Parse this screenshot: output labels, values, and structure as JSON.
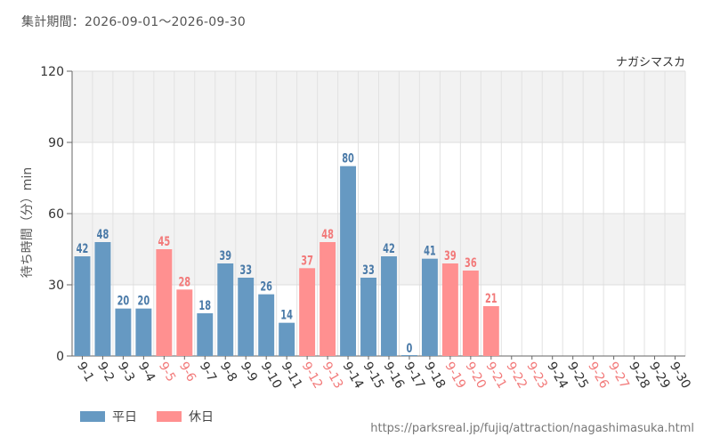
{
  "header": {
    "period": "集計期間：2026-09-01〜2026-09-30"
  },
  "footer": {
    "source_url": "https://parksreal.jp/fujiq/attraction/nagashimasuka.html"
  },
  "colors": {
    "weekday": "#6699c2",
    "holiday": "#ff9090",
    "weekday_label": "#4a7aa8",
    "holiday_label": "#f27a7a"
  },
  "chart_data": {
    "type": "bar",
    "title": "ナガシマスカ",
    "ylabel": "待ち時間（分）min",
    "xlabel": "",
    "ylim": [
      0,
      120
    ],
    "yticks": [
      0,
      30,
      60,
      90,
      120
    ],
    "grid": true,
    "legend_position": "bottom-left",
    "categories": [
      "9-1",
      "9-2",
      "9-3",
      "9-4",
      "9-5",
      "9-6",
      "9-7",
      "9-8",
      "9-9",
      "9-10",
      "9-11",
      "9-12",
      "9-13",
      "9-14",
      "9-15",
      "9-16",
      "9-17",
      "9-18",
      "9-19",
      "9-20",
      "9-21",
      "9-22",
      "9-23",
      "9-24",
      "9-25",
      "9-26",
      "9-27",
      "9-28",
      "9-29",
      "9-30"
    ],
    "values": [
      42,
      48,
      20,
      20,
      45,
      28,
      18,
      39,
      33,
      26,
      14,
      37,
      48,
      80,
      33,
      42,
      0,
      41,
      39,
      36,
      21,
      null,
      null,
      null,
      null,
      null,
      null,
      null,
      null,
      null
    ],
    "day_type": [
      "weekday",
      "weekday",
      "weekday",
      "weekday",
      "holiday",
      "holiday",
      "weekday",
      "weekday",
      "weekday",
      "weekday",
      "weekday",
      "holiday",
      "holiday",
      "weekday",
      "weekday",
      "weekday",
      "weekday",
      "weekday",
      "holiday",
      "holiday",
      "holiday",
      "holiday",
      "holiday",
      "weekday",
      "weekday",
      "holiday",
      "holiday",
      "weekday",
      "weekday",
      "weekday"
    ],
    "series": [
      {
        "name": "平日",
        "key": "weekday"
      },
      {
        "name": "休日",
        "key": "holiday"
      }
    ]
  }
}
